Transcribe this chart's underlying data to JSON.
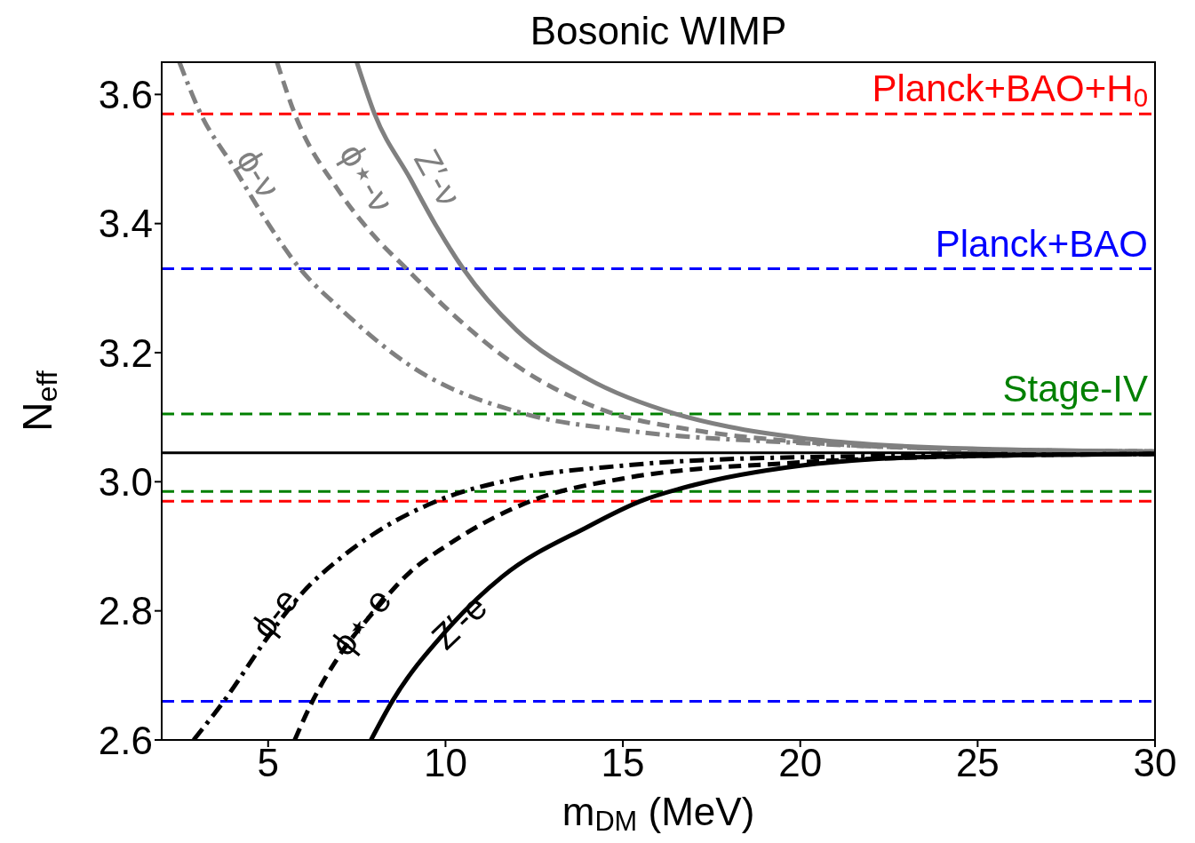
{
  "chart_data": {
    "type": "line",
    "title": "Bosonic WIMP",
    "xlabel": "m$_{DM}$ (MeV)",
    "ylabel": "N$_{eff}$",
    "xlim": [
      2,
      30
    ],
    "xticks": [
      5,
      10,
      15,
      20,
      25,
      30
    ],
    "ylim": [
      2.6,
      3.65
    ],
    "yticks": [
      2.6,
      2.8,
      {
        "value": 3,
        "label": "3.0"
      },
      3.2,
      3.4,
      3.6
    ],
    "marker": "none",
    "series": [
      {
        "name": "Z′-ν",
        "color": "#808080",
        "line_style": "solid",
        "x": [
          7.5,
          8,
          9,
          9.7,
          10.5,
          12,
          14,
          16.5,
          18,
          20,
          22,
          25,
          30
        ],
        "values": [
          3.65,
          3.57,
          3.47,
          3.4,
          3.33,
          3.235,
          3.16,
          3.105,
          3.085,
          3.068,
          3.058,
          3.051,
          3.047
        ]
      },
      {
        "name": "ϕ⋆-ν",
        "color": "#808080",
        "line_style": "dashed",
        "x": [
          5.25,
          5.75,
          7,
          8,
          8.9,
          10,
          12,
          14.5,
          17,
          20,
          25,
          30
        ],
        "values": [
          3.65,
          3.57,
          3.45,
          3.38,
          3.33,
          3.27,
          3.18,
          3.11,
          3.08,
          3.062,
          3.05,
          3.047
        ]
      },
      {
        "name": "ϕ-ν",
        "color": "#808080",
        "line_style": "dashdot",
        "x": [
          2.5,
          3.1,
          4,
          5,
          5.9,
          7,
          9,
          12.25,
          15,
          20,
          25,
          30
        ],
        "values": [
          3.65,
          3.57,
          3.49,
          3.4,
          3.33,
          3.27,
          3.18,
          3.105,
          3.08,
          3.06,
          3.05,
          3.047
        ]
      },
      {
        "name": "Z′-e",
        "color": "#000000",
        "line_style": "solid",
        "x": [
          7.9,
          8.5,
          10,
          11.6,
          14,
          15.5,
          17,
          20,
          22,
          25,
          30
        ],
        "values": [
          2.6,
          2.66,
          2.768,
          2.853,
          2.93,
          2.97,
          2.995,
          3.025,
          3.035,
          3.04,
          3.043
        ]
      },
      {
        "name": "ϕ⋆-e",
        "color": "#000000",
        "line_style": "dashed",
        "x": [
          5.75,
          6.25,
          7,
          8,
          9,
          10,
          12.4,
          15,
          20,
          25,
          30
        ],
        "values": [
          2.6,
          2.66,
          2.73,
          2.8,
          2.86,
          2.9,
          2.97,
          3.005,
          3.03,
          3.04,
          3.043
        ]
      },
      {
        "name": "ϕ-e",
        "color": "#000000",
        "line_style": "dashdot",
        "x": [
          2.9,
          3.75,
          5,
          6,
          7,
          8,
          9.75,
          12,
          15,
          20,
          30
        ],
        "values": [
          2.6,
          2.66,
          2.76,
          2.83,
          2.88,
          2.92,
          2.97,
          3.005,
          3.025,
          3.038,
          3.043
        ]
      }
    ],
    "ref_lines": [
      {
        "axis": "y",
        "value": 3.57,
        "label": "Planck+BAO+H$_{0}$",
        "color": "#ff0000",
        "line_style": "dashed"
      },
      {
        "axis": "y",
        "value": 3.33,
        "label": "Planck+BAO",
        "color": "#0000ff",
        "line_style": "dashed"
      },
      {
        "axis": "y",
        "value": 3.105,
        "label": "Stage-IV",
        "color": "#008000",
        "line_style": "dashed"
      },
      {
        "axis": "y",
        "value": 3.045,
        "color": "#000000",
        "line_style": "solid"
      },
      {
        "axis": "y",
        "value": 2.985,
        "color": "#008000",
        "line_style": "dashed"
      },
      {
        "axis": "y",
        "value": 2.97,
        "color": "#ff0000",
        "line_style": "dashed"
      },
      {
        "axis": "y",
        "value": 2.66,
        "color": "#0000ff",
        "line_style": "dashed"
      }
    ]
  }
}
